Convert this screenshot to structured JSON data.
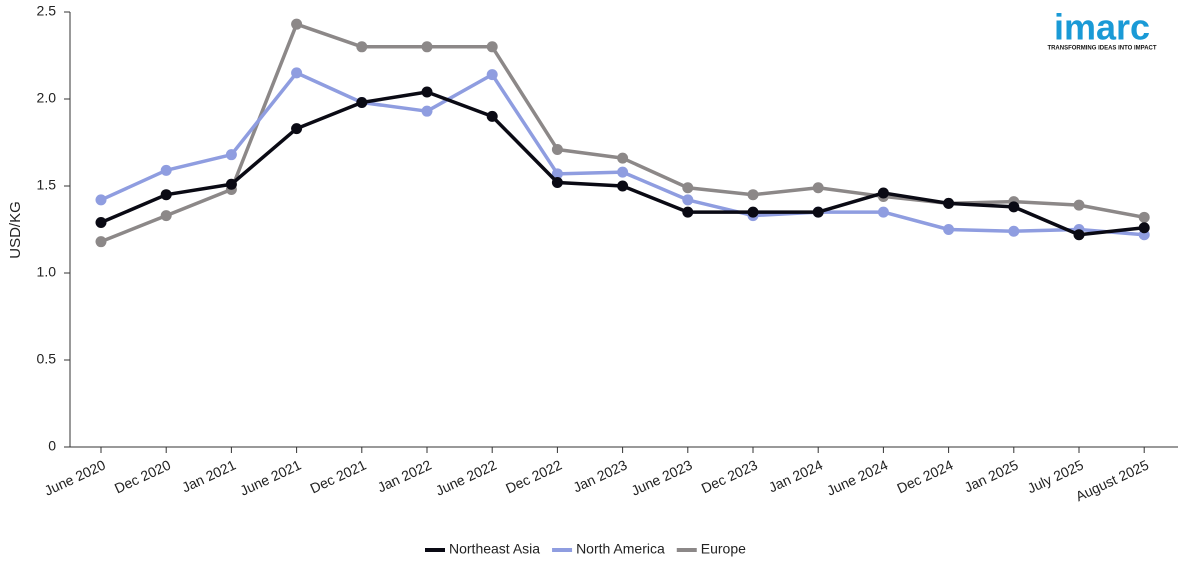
{
  "chart_data": {
    "type": "line",
    "y_label": "USD/KG",
    "categories": [
      "June 2020",
      "Dec 2020",
      "Jan 2021",
      "June 2021",
      "Dec 2021",
      "Jan 2022",
      "June 2022",
      "Dec 2022",
      "Jan 2023",
      "June 2023",
      "Dec 2023",
      "Jan 2024",
      "June 2024",
      "Dec 2024",
      "Jan 2025",
      "July 2025",
      "August 2025"
    ],
    "series": [
      {
        "name": "Northeast Asia",
        "color": "#0a0a14",
        "values": [
          1.29,
          1.45,
          1.51,
          1.83,
          1.98,
          2.04,
          1.9,
          1.52,
          1.5,
          1.35,
          1.35,
          1.35,
          1.46,
          1.4,
          1.38,
          1.22,
          1.26
        ]
      },
      {
        "name": "North America",
        "color": "#8f9de0",
        "values": [
          1.42,
          1.59,
          1.68,
          2.15,
          1.98,
          1.93,
          2.14,
          1.57,
          1.58,
          1.42,
          1.33,
          1.35,
          1.35,
          1.25,
          1.24,
          1.25,
          1.22
        ]
      },
      {
        "name": "Europe",
        "color": "#8c8888",
        "values": [
          1.18,
          1.33,
          1.48,
          2.43,
          2.3,
          2.3,
          2.3,
          1.71,
          1.66,
          1.49,
          1.45,
          1.49,
          1.44,
          1.4,
          1.41,
          1.39,
          1.32
        ]
      }
    ],
    "ylim": [
      0,
      2.5
    ],
    "yticks": [
      0,
      0.5,
      {
        "value": 1,
        "label": "1.0"
      },
      1.5,
      {
        "value": 2,
        "label": "2.0"
      },
      2.5
    ],
    "grid": false,
    "legend": "bottom"
  },
  "logo": {
    "text": "imarc",
    "tagline": "TRANSFORMING IDEAS INTO IMPACT"
  }
}
